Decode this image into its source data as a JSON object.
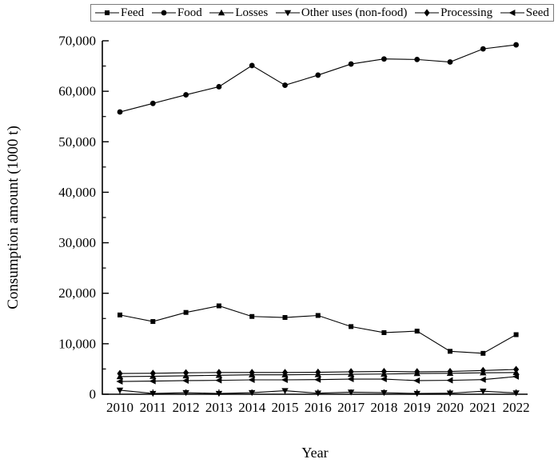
{
  "chart_data": {
    "type": "line",
    "title": "",
    "xlabel": "Year",
    "ylabel": "Consumption amount (1000 t)",
    "x": [
      2010,
      2011,
      2012,
      2013,
      2014,
      2015,
      2016,
      2017,
      2018,
      2019,
      2020,
      2021,
      2022
    ],
    "ylim": [
      0,
      70000
    ],
    "y_tick_step": 10000,
    "y_minor_tick_step": 5000,
    "grid": false,
    "legend_position": "top",
    "line_color": "#000000",
    "background_color": "#ffffff",
    "series": [
      {
        "name": "Feed",
        "marker": "square",
        "values": [
          15700,
          14400,
          16200,
          17500,
          15400,
          15200,
          15600,
          13400,
          12200,
          12500,
          8500,
          8100,
          11800
        ]
      },
      {
        "name": "Food",
        "marker": "circle",
        "values": [
          55900,
          57600,
          59300,
          60900,
          65100,
          61200,
          63200,
          65400,
          66400,
          66300,
          65800,
          68400,
          69200
        ]
      },
      {
        "name": "Losses",
        "marker": "triangle-up",
        "values": [
          3500,
          3550,
          3650,
          3750,
          3850,
          3850,
          3900,
          3950,
          4000,
          4100,
          4150,
          4250,
          4300
        ]
      },
      {
        "name": "Other uses (non-food)",
        "marker": "triangle-down",
        "values": [
          800,
          150,
          300,
          150,
          300,
          700,
          200,
          400,
          300,
          150,
          200,
          600,
          250
        ]
      },
      {
        "name": "Processing",
        "marker": "diamond",
        "values": [
          4100,
          4150,
          4250,
          4300,
          4300,
          4300,
          4350,
          4450,
          4500,
          4450,
          4500,
          4700,
          4900
        ]
      },
      {
        "name": "Seed",
        "marker": "triangle-left",
        "values": [
          2530,
          2600,
          2700,
          2750,
          2850,
          2850,
          2900,
          3000,
          3000,
          2700,
          2750,
          2900,
          3500
        ]
      }
    ],
    "y_tick_labels": [
      "0",
      "10,000",
      "20,000",
      "30,000",
      "40,000",
      "50,000",
      "60,000",
      "70,000"
    ],
    "x_tick_labels": [
      "2010",
      "2011",
      "2012",
      "2013",
      "2014",
      "2015",
      "2016",
      "2017",
      "2018",
      "2019",
      "2020",
      "2021",
      "2022"
    ]
  }
}
